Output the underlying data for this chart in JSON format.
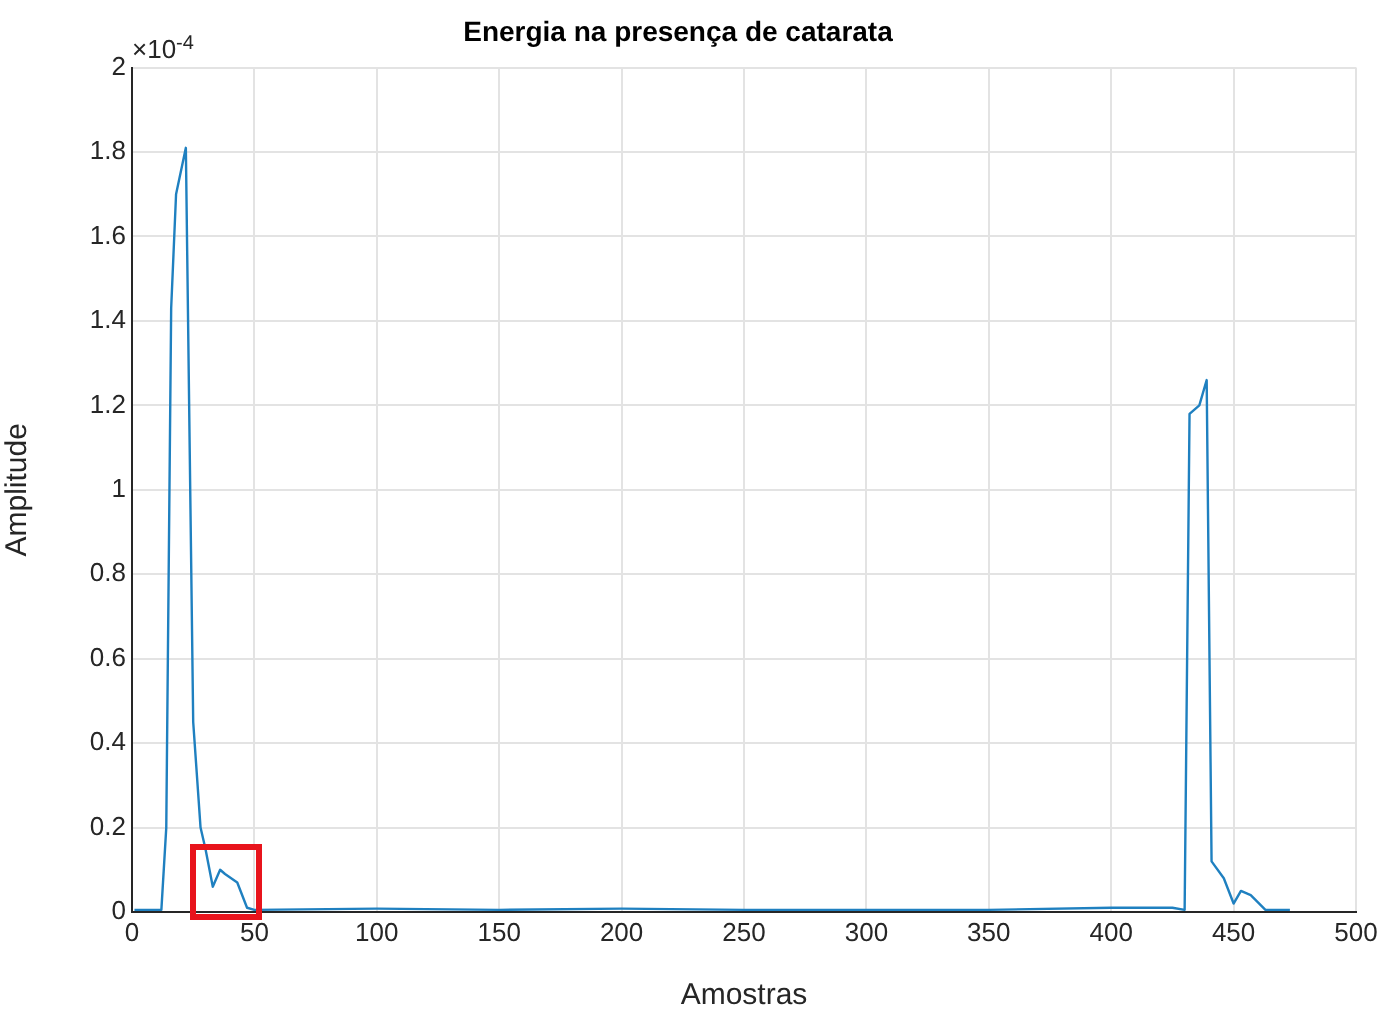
{
  "chart_data": {
    "type": "line",
    "title": "Energia na presença de catarata",
    "xlabel": "Amostras",
    "ylabel": "Amplitude",
    "annotations": [
      "×10$^{-4}$"
    ],
    "xlim": [
      0,
      500
    ],
    "xticks": [
      0,
      50,
      100,
      150,
      200,
      250,
      300,
      350,
      400,
      450,
      500
    ],
    "ylim": [
      0,
      2
    ],
    "yticks": [
      0,
      0.2,
      0.4,
      0.6,
      0.8,
      1,
      1.2,
      1.4,
      1.6,
      1.8,
      2
    ],
    "grid": true,
    "marker": "none",
    "line_style": "solid",
    "legend": false,
    "series": [
      {
        "color": "#1f80c0",
        "x": [
          1,
          12,
          14,
          16,
          18,
          22,
          25,
          28,
          30,
          33,
          36,
          38,
          43,
          47,
          50,
          100,
          150,
          200,
          250,
          300,
          350,
          400,
          425,
          430,
          432,
          436,
          439,
          441,
          446,
          450,
          453,
          457,
          463,
          473
        ],
        "values": [
          0.005,
          0.005,
          0.2,
          1.43,
          1.7,
          1.81,
          0.45,
          0.2,
          0.15,
          0.06,
          0.1,
          0.09,
          0.07,
          0.01,
          0.005,
          0.008,
          0.005,
          0.008,
          0.005,
          0.005,
          0.005,
          0.01,
          0.01,
          0.005,
          1.18,
          1.2,
          1.26,
          0.12,
          0.08,
          0.02,
          0.05,
          0.04,
          0.005,
          0.005
        ]
      }
    ]
  }
}
